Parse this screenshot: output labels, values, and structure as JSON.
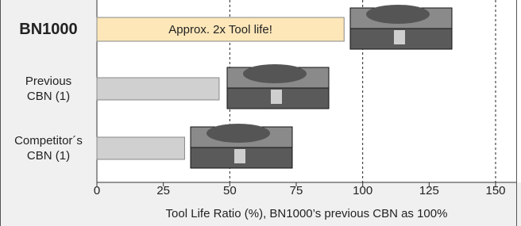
{
  "chart_data": {
    "type": "barh",
    "categories": [
      "BN1000",
      "Previous CBN (1)",
      "Competitor´s CBN (1)"
    ],
    "values": [
      93,
      46,
      33
    ],
    "colors": [
      "#fde7b9",
      "#d0d0d0",
      "#d0d0d0"
    ],
    "annotation": "Approx.  2x Tool life!",
    "xlabel": "Tool Life Ratio (%),   BN1000’s previous CBN as 100%",
    "xlim": [
      0,
      150
    ],
    "xticks": [
      0,
      25,
      50,
      75,
      100,
      125,
      150
    ],
    "dashed_lines": [
      50,
      100,
      150
    ]
  }
}
